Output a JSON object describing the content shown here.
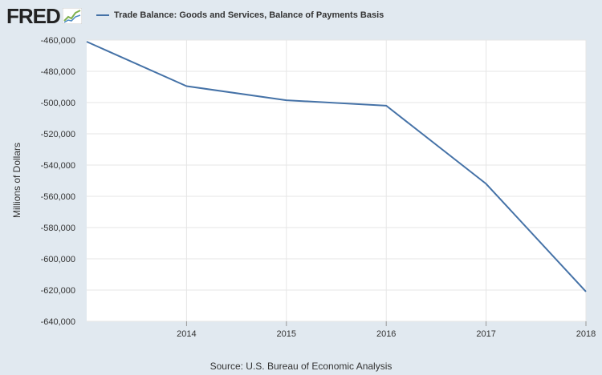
{
  "header": {
    "logo_text": "FRED"
  },
  "colors": {
    "background": "#e1e9f0",
    "plot_background": "#ffffff",
    "series_line": "#4572a7",
    "gridline": "#e6e6e6"
  },
  "source_text": "Source: U.S. Bureau of Economic Analysis",
  "chart_data": {
    "type": "line",
    "title": "",
    "xlabel": "",
    "ylabel": "Millions of Dollars",
    "xlim": [
      2013,
      2018
    ],
    "ylim": [
      -640000,
      -460000
    ],
    "x_ticks": [
      "2014",
      "2015",
      "2016",
      "2017",
      "2018"
    ],
    "y_ticks": [
      "-460,000",
      "-480,000",
      "-500,000",
      "-520,000",
      "-540,000",
      "-560,000",
      "-580,000",
      "-600,000",
      "-620,000",
      "-640,000"
    ],
    "grid": true,
    "legend_position": "top",
    "series": [
      {
        "name": "Trade Balance: Goods and Services, Balance of Payments Basis",
        "x": [
          2013,
          2014,
          2015,
          2016,
          2017,
          2018
        ],
        "values": [
          -461000,
          -489500,
          -498500,
          -502000,
          -552000,
          -621000
        ]
      }
    ]
  }
}
